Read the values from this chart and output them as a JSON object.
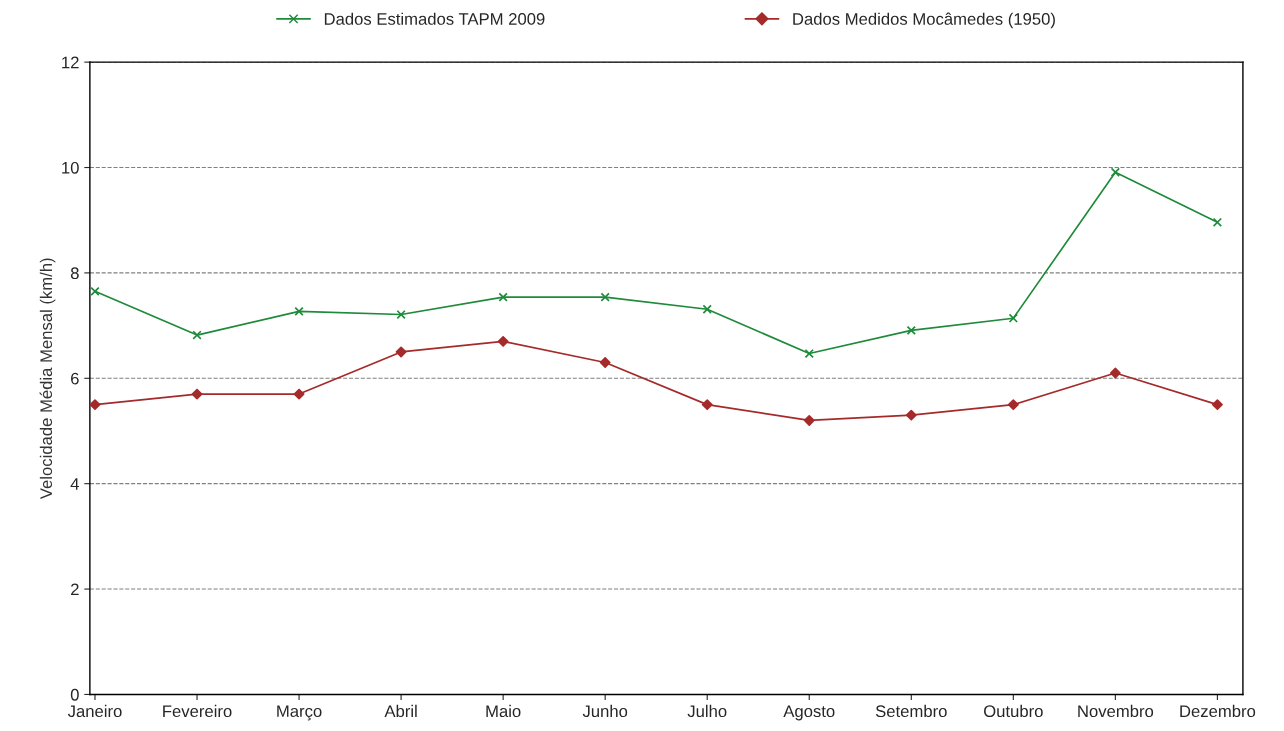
{
  "chart_data": {
    "type": "line",
    "ylabel": "Velocidade Média Mensal (km/h)",
    "categories": [
      "Janeiro",
      "Fevereiro",
      "Março",
      "Abril",
      "Maio",
      "Junho",
      "Julho",
      "Agosto",
      "Setembro",
      "Outubro",
      "Novembro",
      "Dezembro"
    ],
    "series": [
      {
        "name": "Dados Estimados TAPM 2009",
        "color": "#1e8a3a",
        "marker": "cross",
        "values": [
          7.65,
          6.82,
          7.27,
          7.21,
          7.54,
          7.54,
          7.31,
          6.47,
          6.91,
          7.14,
          9.91,
          8.96
        ]
      },
      {
        "name": "Dados Medidos Mocâmedes (1950)",
        "color": "#a52a2a",
        "marker": "diamond",
        "values": [
          5.5,
          5.7,
          5.7,
          6.5,
          6.7,
          6.3,
          5.5,
          5.2,
          5.3,
          5.5,
          6.1,
          5.5
        ]
      }
    ],
    "ylim": [
      0,
      12
    ],
    "yticks": [
      0,
      2,
      4,
      6,
      8,
      10,
      12
    ],
    "grid": "y",
    "legend": "top",
    "line_style": "solid"
  }
}
